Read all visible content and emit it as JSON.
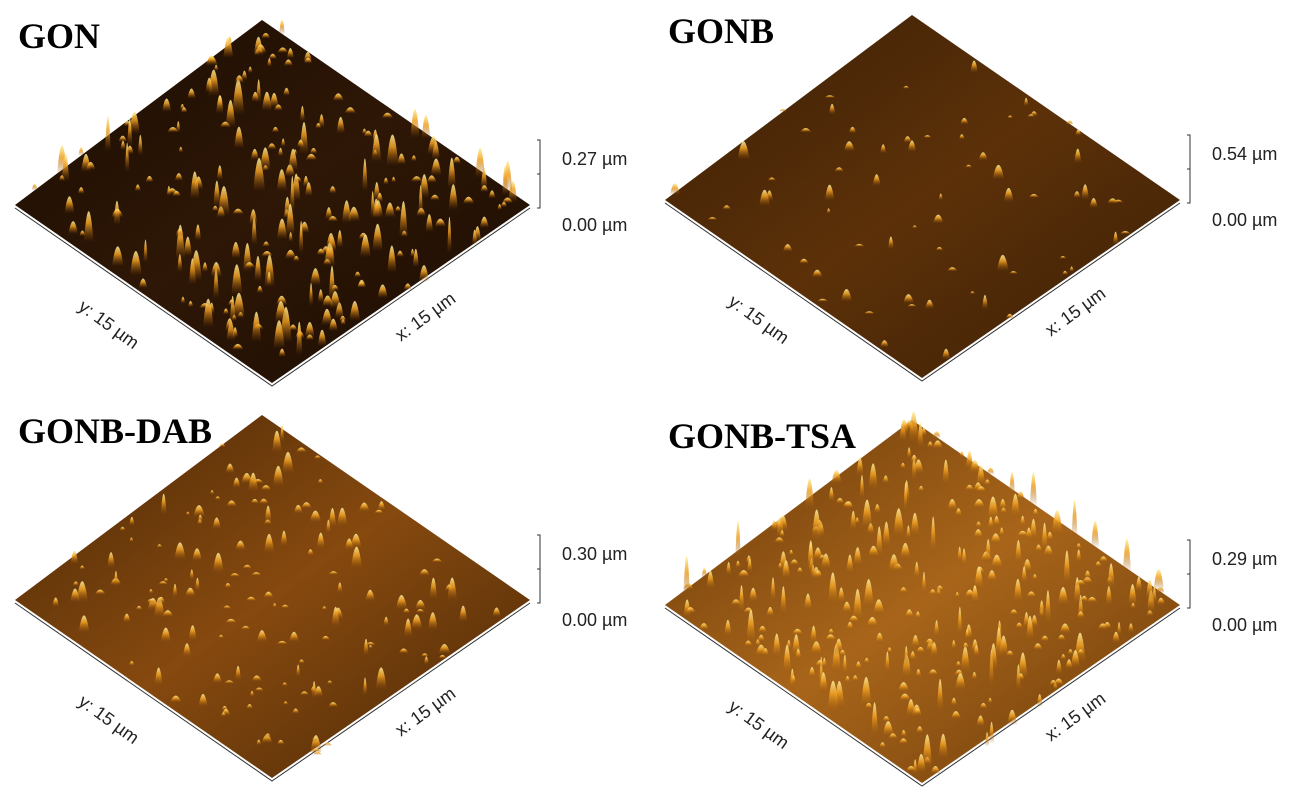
{
  "panels": [
    {
      "label": "GON",
      "z_top": "0.27 µm",
      "z_bottom": "0.00 µm",
      "y_axis": "y: 15 µm",
      "x_axis": "x: 15 µm"
    },
    {
      "label": "GONB",
      "z_top": "0.54 µm",
      "z_bottom": "0.00 µm",
      "y_axis": "y: 15 µm",
      "x_axis": "x: 15 µm"
    },
    {
      "label": "GONB-DAB",
      "z_top": "0.30 µm",
      "z_bottom": "0.00 µm",
      "y_axis": "y: 15 µm",
      "x_axis": "x: 15 µm"
    },
    {
      "label": "GONB-TSA",
      "z_top": "0.29 µm",
      "z_bottom": "0.00 µm",
      "y_axis": "y: 15 µm",
      "x_axis": "x: 15 µm"
    }
  ]
}
